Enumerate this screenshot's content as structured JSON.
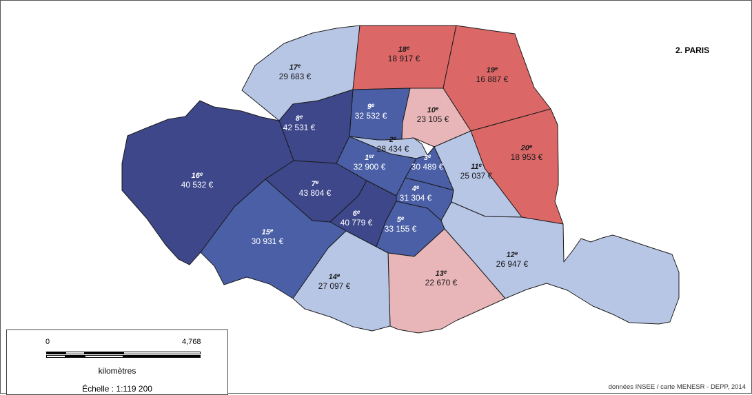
{
  "map": {
    "title": "2. PARIS",
    "credits": "données INSEE / carte MENESR - DEPP, 2014",
    "colors": {
      "dark_blue": "#3d478a",
      "mid_blue": "#4a5fa6",
      "light_blue": "#b8c6e6",
      "light_red": "#e8b6b8",
      "red": "#dc6767",
      "outline": "#1a1a1a"
    },
    "arrondissements": [
      {
        "id": "1",
        "num": "1",
        "suffix": "er",
        "value": "32 900 €",
        "fill": "mid_blue"
      },
      {
        "id": "2",
        "num": "2",
        "suffix": "e",
        "value": "28 434 €",
        "fill": "light_blue"
      },
      {
        "id": "3",
        "num": "3",
        "suffix": "e",
        "value": "30 489 €",
        "fill": "mid_blue"
      },
      {
        "id": "4",
        "num": "4",
        "suffix": "e",
        "value": "31 304 €",
        "fill": "mid_blue"
      },
      {
        "id": "5",
        "num": "5",
        "suffix": "e",
        "value": "33 155 €",
        "fill": "mid_blue"
      },
      {
        "id": "6",
        "num": "6",
        "suffix": "e",
        "value": "40 779 €",
        "fill": "dark_blue"
      },
      {
        "id": "7",
        "num": "7",
        "suffix": "e",
        "value": "43 804 €",
        "fill": "dark_blue"
      },
      {
        "id": "8",
        "num": "8",
        "suffix": "e",
        "value": "42 531 €",
        "fill": "dark_blue"
      },
      {
        "id": "9",
        "num": "9",
        "suffix": "e",
        "value": "32 532 €",
        "fill": "mid_blue"
      },
      {
        "id": "10",
        "num": "10",
        "suffix": "e",
        "value": "23 105 €",
        "fill": "light_red"
      },
      {
        "id": "11",
        "num": "11",
        "suffix": "e",
        "value": "25 037 €",
        "fill": "light_blue"
      },
      {
        "id": "12",
        "num": "12",
        "suffix": "e",
        "value": "26 947 €",
        "fill": "light_blue"
      },
      {
        "id": "13",
        "num": "13",
        "suffix": "e",
        "value": "22 670 €",
        "fill": "light_red"
      },
      {
        "id": "14",
        "num": "14",
        "suffix": "e",
        "value": "27 097 €",
        "fill": "light_blue"
      },
      {
        "id": "15",
        "num": "15",
        "suffix": "e",
        "value": "30 931 €",
        "fill": "mid_blue"
      },
      {
        "id": "16",
        "num": "16",
        "suffix": "e",
        "value": "40 532 €",
        "fill": "dark_blue"
      },
      {
        "id": "17",
        "num": "17",
        "suffix": "e",
        "value": "29 683 €",
        "fill": "light_blue"
      },
      {
        "id": "18",
        "num": "18",
        "suffix": "e",
        "value": "18 917 €",
        "fill": "red"
      },
      {
        "id": "19",
        "num": "19",
        "suffix": "e",
        "value": "16 887 €",
        "fill": "red"
      },
      {
        "id": "20",
        "num": "20",
        "suffix": "e",
        "value": "18 953 €",
        "fill": "red"
      }
    ]
  },
  "scale": {
    "start_label": "0",
    "end_label": "4,768",
    "unit_label": "kilomètres",
    "ratio_label": "Échelle : 1:119 200"
  }
}
